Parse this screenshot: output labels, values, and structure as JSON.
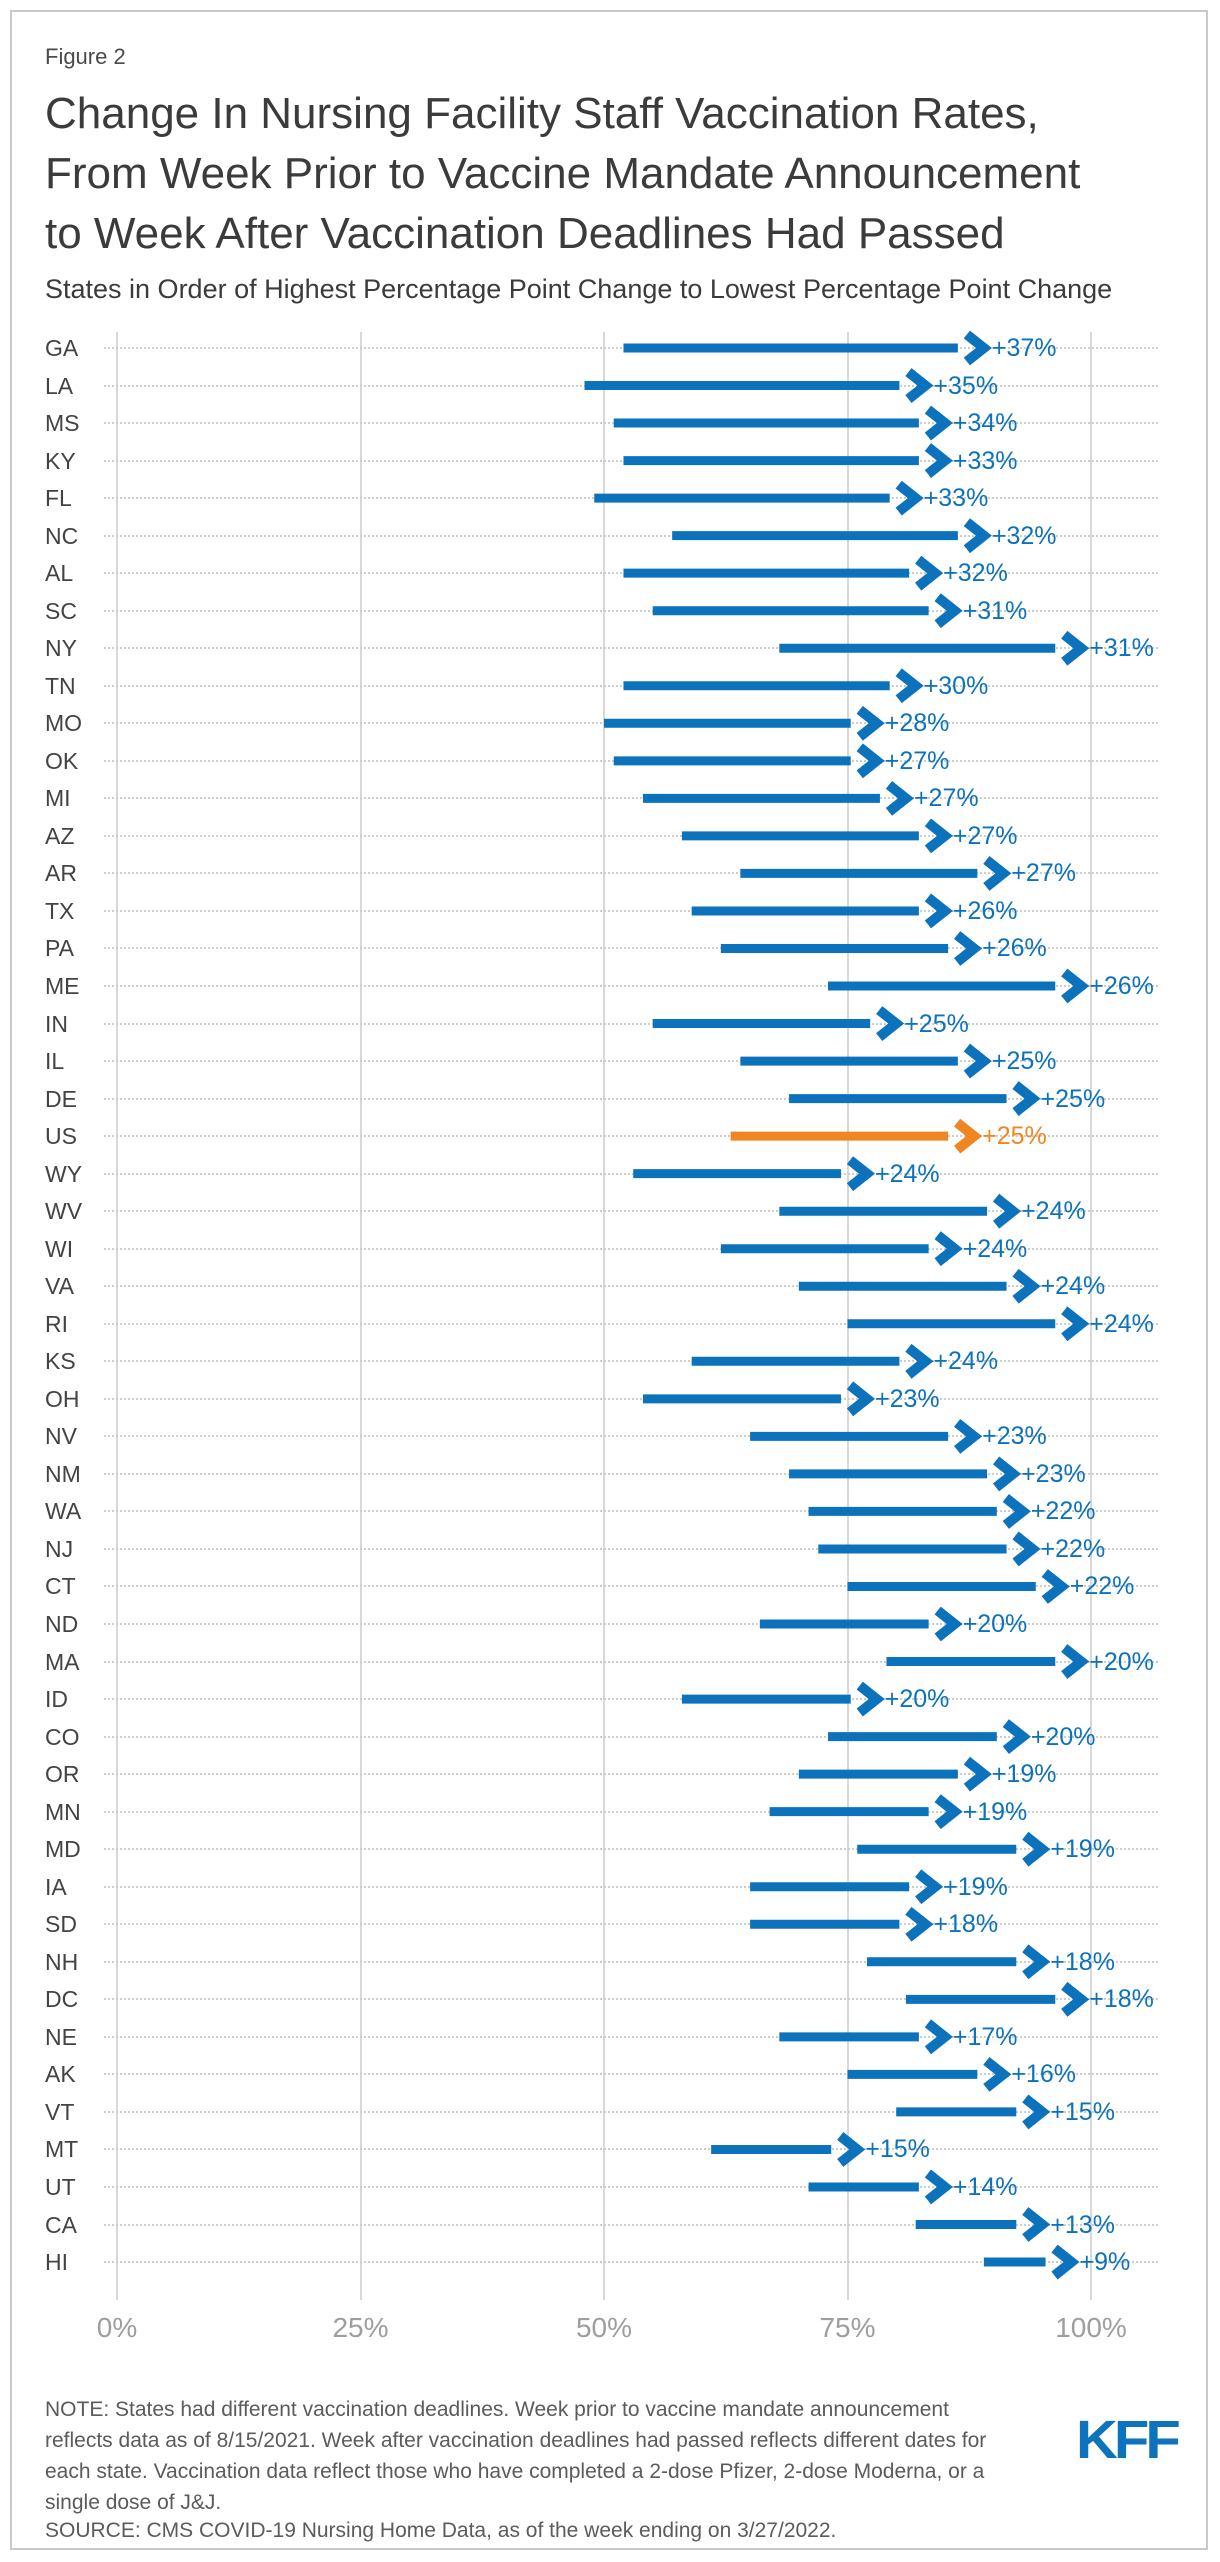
{
  "figure_label": "Figure 2",
  "header": {
    "title_lines": [
      "Change In Nursing Facility Staff Vaccination Rates,",
      "From Week Prior to Vaccine Mandate Announcement",
      "to Week After Vaccination Deadlines Had Passed"
    ],
    "subtitle": "States in Order of Highest Percentage Point Change to Lowest Percentage Point Change"
  },
  "footer": {
    "note_lines": [
      "NOTE: States had different vaccination deadlines. Week prior to vaccine mandate announcement",
      "reflects data as of 8/15/2021. Week after vaccination deadlines had passed reflects different dates for",
      "each state. Vaccination data reflect those who have completed a 2-dose Pfizer, 2-dose Moderna, or a",
      "single dose of J&J."
    ],
    "source": "SOURCE: CMS COVID-19 Nursing Home Data, as of the week ending on 3/27/2022.",
    "logo_text": "KFF"
  },
  "colors": {
    "arrow_blue": "#0d72bc",
    "highlight_orange": "#f08621",
    "gridline": "#d8d8d8",
    "dotted_guide": "#cdcdcd",
    "tick_text": "#9e9e9e",
    "state_text": "#434343",
    "title_text": "#3b3b3b",
    "note_text": "#5b5b5b",
    "kff_blue": "#0d73bc",
    "frame": "#c9c9c9"
  },
  "chart_data": {
    "type": "bar",
    "subtype": "horizontal-arrow-range (dumbbell arrows from start rate to end rate)",
    "orientation": "horizontal",
    "title": "Change In Nursing Facility Staff Vaccination Rates, From Week Prior to Vaccine Mandate Announcement to Week After Vaccination Deadlines Had Passed",
    "subtitle": "States in Order of Highest Percentage Point Change to Lowest Percentage Point Change",
    "xlabel": "",
    "ylabel": "",
    "xlim": [
      0,
      100
    ],
    "x_ticks": [
      {
        "value": 0,
        "label": "0%"
      },
      {
        "value": 25,
        "label": "25%"
      },
      {
        "value": 50,
        "label": "50%"
      },
      {
        "value": 75,
        "label": "75%"
      },
      {
        "value": 100,
        "label": "100%"
      }
    ],
    "grid": {
      "vertical": "solid",
      "horizontal": "dotted row guides"
    },
    "legend": "none",
    "highlight_key": "US",
    "series": [
      {
        "state": "GA",
        "start": 52,
        "end": 89,
        "change": 37,
        "label": "+37%",
        "highlight": false
      },
      {
        "state": "LA",
        "start": 48,
        "end": 83,
        "change": 35,
        "label": "+35%",
        "highlight": false
      },
      {
        "state": "MS",
        "start": 51,
        "end": 85,
        "change": 34,
        "label": "+34%",
        "highlight": false
      },
      {
        "state": "KY",
        "start": 52,
        "end": 85,
        "change": 33,
        "label": "+33%",
        "highlight": false
      },
      {
        "state": "FL",
        "start": 49,
        "end": 82,
        "change": 33,
        "label": "+33%",
        "highlight": false
      },
      {
        "state": "NC",
        "start": 57,
        "end": 89,
        "change": 32,
        "label": "+32%",
        "highlight": false
      },
      {
        "state": "AL",
        "start": 52,
        "end": 84,
        "change": 32,
        "label": "+32%",
        "highlight": false
      },
      {
        "state": "SC",
        "start": 55,
        "end": 86,
        "change": 31,
        "label": "+31%",
        "highlight": false
      },
      {
        "state": "NY",
        "start": 68,
        "end": 99,
        "change": 31,
        "label": "+31%",
        "highlight": false
      },
      {
        "state": "TN",
        "start": 52,
        "end": 82,
        "change": 30,
        "label": "+30%",
        "highlight": false
      },
      {
        "state": "MO",
        "start": 50,
        "end": 78,
        "change": 28,
        "label": "+28%",
        "highlight": false
      },
      {
        "state": "OK",
        "start": 51,
        "end": 78,
        "change": 27,
        "label": "+27%",
        "highlight": false
      },
      {
        "state": "MI",
        "start": 54,
        "end": 81,
        "change": 27,
        "label": "+27%",
        "highlight": false
      },
      {
        "state": "AZ",
        "start": 58,
        "end": 85,
        "change": 27,
        "label": "+27%",
        "highlight": false
      },
      {
        "state": "AR",
        "start": 64,
        "end": 91,
        "change": 27,
        "label": "+27%",
        "highlight": false
      },
      {
        "state": "TX",
        "start": 59,
        "end": 85,
        "change": 26,
        "label": "+26%",
        "highlight": false
      },
      {
        "state": "PA",
        "start": 62,
        "end": 88,
        "change": 26,
        "label": "+26%",
        "highlight": false
      },
      {
        "state": "ME",
        "start": 73,
        "end": 99,
        "change": 26,
        "label": "+26%",
        "highlight": false
      },
      {
        "state": "IN",
        "start": 55,
        "end": 80,
        "change": 25,
        "label": "+25%",
        "highlight": false
      },
      {
        "state": "IL",
        "start": 64,
        "end": 89,
        "change": 25,
        "label": "+25%",
        "highlight": false
      },
      {
        "state": "DE",
        "start": 69,
        "end": 94,
        "change": 25,
        "label": "+25%",
        "highlight": false
      },
      {
        "state": "US",
        "start": 63,
        "end": 88,
        "change": 25,
        "label": "+25%",
        "highlight": true
      },
      {
        "state": "WY",
        "start": 53,
        "end": 77,
        "change": 24,
        "label": "+24%",
        "highlight": false
      },
      {
        "state": "WV",
        "start": 68,
        "end": 92,
        "change": 24,
        "label": "+24%",
        "highlight": false
      },
      {
        "state": "WI",
        "start": 62,
        "end": 86,
        "change": 24,
        "label": "+24%",
        "highlight": false
      },
      {
        "state": "VA",
        "start": 70,
        "end": 94,
        "change": 24,
        "label": "+24%",
        "highlight": false
      },
      {
        "state": "RI",
        "start": 75,
        "end": 99,
        "change": 24,
        "label": "+24%",
        "highlight": false
      },
      {
        "state": "KS",
        "start": 59,
        "end": 83,
        "change": 24,
        "label": "+24%",
        "highlight": false
      },
      {
        "state": "OH",
        "start": 54,
        "end": 77,
        "change": 23,
        "label": "+23%",
        "highlight": false
      },
      {
        "state": "NV",
        "start": 65,
        "end": 88,
        "change": 23,
        "label": "+23%",
        "highlight": false
      },
      {
        "state": "NM",
        "start": 69,
        "end": 92,
        "change": 23,
        "label": "+23%",
        "highlight": false
      },
      {
        "state": "WA",
        "start": 71,
        "end": 93,
        "change": 22,
        "label": "+22%",
        "highlight": false
      },
      {
        "state": "NJ",
        "start": 72,
        "end": 94,
        "change": 22,
        "label": "+22%",
        "highlight": false
      },
      {
        "state": "CT",
        "start": 75,
        "end": 97,
        "change": 22,
        "label": "+22%",
        "highlight": false
      },
      {
        "state": "ND",
        "start": 66,
        "end": 86,
        "change": 20,
        "label": "+20%",
        "highlight": false
      },
      {
        "state": "MA",
        "start": 79,
        "end": 99,
        "change": 20,
        "label": "+20%",
        "highlight": false
      },
      {
        "state": "ID",
        "start": 58,
        "end": 78,
        "change": 20,
        "label": "+20%",
        "highlight": false
      },
      {
        "state": "CO",
        "start": 73,
        "end": 93,
        "change": 20,
        "label": "+20%",
        "highlight": false
      },
      {
        "state": "OR",
        "start": 70,
        "end": 89,
        "change": 19,
        "label": "+19%",
        "highlight": false
      },
      {
        "state": "MN",
        "start": 67,
        "end": 86,
        "change": 19,
        "label": "+19%",
        "highlight": false
      },
      {
        "state": "MD",
        "start": 76,
        "end": 95,
        "change": 19,
        "label": "+19%",
        "highlight": false
      },
      {
        "state": "IA",
        "start": 65,
        "end": 84,
        "change": 19,
        "label": "+19%",
        "highlight": false
      },
      {
        "state": "SD",
        "start": 65,
        "end": 83,
        "change": 18,
        "label": "+18%",
        "highlight": false
      },
      {
        "state": "NH",
        "start": 77,
        "end": 95,
        "change": 18,
        "label": "+18%",
        "highlight": false
      },
      {
        "state": "DC",
        "start": 81,
        "end": 99,
        "change": 18,
        "label": "+18%",
        "highlight": false
      },
      {
        "state": "NE",
        "start": 68,
        "end": 85,
        "change": 17,
        "label": "+17%",
        "highlight": false
      },
      {
        "state": "AK",
        "start": 75,
        "end": 91,
        "change": 16,
        "label": "+16%",
        "highlight": false
      },
      {
        "state": "VT",
        "start": 80,
        "end": 95,
        "change": 15,
        "label": "+15%",
        "highlight": false
      },
      {
        "state": "MT",
        "start": 61,
        "end": 76,
        "change": 15,
        "label": "+15%",
        "highlight": false
      },
      {
        "state": "UT",
        "start": 71,
        "end": 85,
        "change": 14,
        "label": "+14%",
        "highlight": false
      },
      {
        "state": "CA",
        "start": 82,
        "end": 95,
        "change": 13,
        "label": "+13%",
        "highlight": false
      },
      {
        "state": "HI",
        "start": 89,
        "end": 98,
        "change": 9,
        "label": "+9%",
        "highlight": false
      }
    ]
  }
}
